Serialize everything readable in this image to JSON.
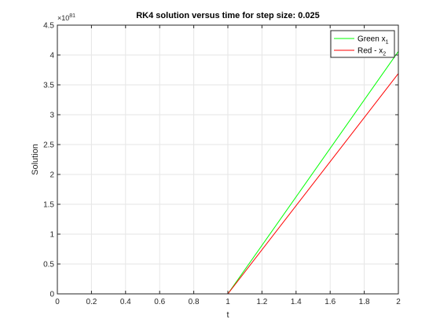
{
  "chart_data": {
    "type": "line",
    "title": "RK4 solution versus time for step size: 0.025",
    "xlabel": "t",
    "ylabel": "Solution",
    "xlim": [
      0,
      2
    ],
    "ylim": [
      0,
      4.5
    ],
    "y_exponent_label": "×10",
    "y_exponent": "81",
    "grid": true,
    "legend_position": "top-right",
    "x_ticks": [
      "0",
      "0.2",
      "0.4",
      "0.6",
      "0.8",
      "1",
      "1.2",
      "1.4",
      "1.6",
      "1.8",
      "2"
    ],
    "y_ticks": [
      "0",
      "0.5",
      "1",
      "1.5",
      "2",
      "2.5",
      "3",
      "3.5",
      "4",
      "4.5"
    ],
    "series": [
      {
        "name": "Green x",
        "name_sub": "1",
        "color": "#00ff00",
        "x": [
          0,
          1,
          2
        ],
        "y": [
          0,
          0,
          4.06
        ]
      },
      {
        "name": "Red - x",
        "name_sub": "2",
        "color": "#ff0000",
        "x": [
          0,
          1,
          2
        ],
        "y": [
          0,
          0,
          3.69
        ]
      }
    ]
  }
}
